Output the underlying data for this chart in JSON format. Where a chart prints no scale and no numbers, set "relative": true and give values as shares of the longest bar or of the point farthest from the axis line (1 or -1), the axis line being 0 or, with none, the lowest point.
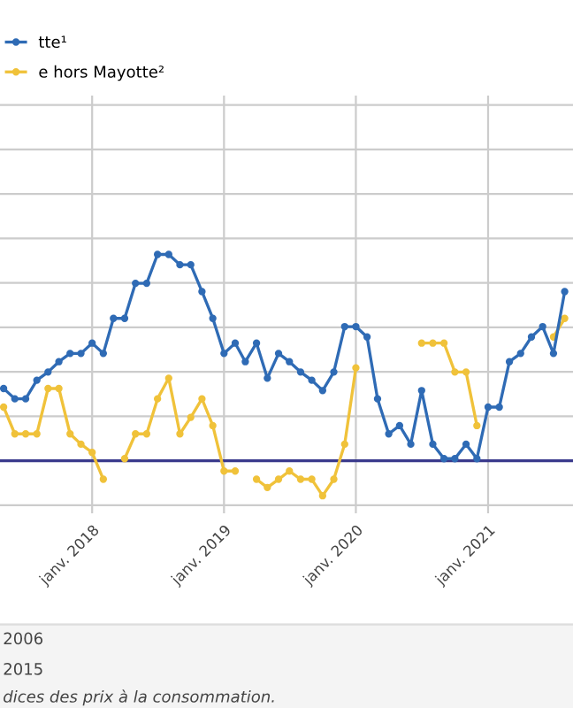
{
  "chart_data": {
    "type": "line",
    "relative": true,
    "grid": true,
    "marker": "circle",
    "line_style": "solid",
    "legend": "top left",
    "x": [
      "2017-05",
      "2017-06",
      "2017-07",
      "2017-08",
      "2017-09",
      "2017-10",
      "2017-11",
      "2017-12",
      "2018-01",
      "2018-02",
      "2018-03",
      "2018-04",
      "2018-05",
      "2018-06",
      "2018-07",
      "2018-08",
      "2018-09",
      "2018-10",
      "2018-11",
      "2018-12",
      "2019-01",
      "2019-02",
      "2019-03",
      "2019-04",
      "2019-05",
      "2019-06",
      "2019-07",
      "2019-08",
      "2019-09",
      "2019-10",
      "2019-11",
      "2019-12",
      "2020-01",
      "2020-02",
      "2020-03",
      "2020-04",
      "2020-05",
      "2020-06",
      "2020-07",
      "2020-08",
      "2020-09",
      "2020-10",
      "2020-11",
      "2020-12",
      "2021-01",
      "2021-02",
      "2021-03",
      "2021-04",
      "2021-05",
      "2021-06",
      "2021-07",
      "2021-08"
    ],
    "xlim": [
      "2017-04-21",
      "2021-08-24"
    ],
    "xticks": [
      {
        "value": "2018-01-01",
        "label": "janv. 2018"
      },
      {
        "value": "2019-01-01",
        "label": "janv. 2019"
      },
      {
        "value": "2020-01-01",
        "label": "janv. 2020"
      },
      {
        "value": "2021-01-01",
        "label": "janv. 2021"
      }
    ],
    "series": [
      {
        "name": "tte¹",
        "color": "#2f6bb5",
        "values": [
          0.35,
          0.3,
          0.3,
          0.39,
          0.43,
          0.48,
          0.52,
          0.52,
          0.57,
          0.52,
          0.69,
          0.69,
          0.86,
          0.86,
          1,
          1,
          0.95,
          0.95,
          0.82,
          0.69,
          0.52,
          0.57,
          0.48,
          0.57,
          0.4,
          0.52,
          0.48,
          0.43,
          0.39,
          0.34,
          0.43,
          0.65,
          0.65,
          0.6,
          0.3,
          0.13,
          0.17,
          0.08,
          0.34,
          0.08,
          0.01,
          0.01,
          0.08,
          0.01,
          0.26,
          0.26,
          0.48,
          0.52,
          0.6,
          0.65,
          0.52,
          0.82
        ]
      },
      {
        "name": "e hors Mayotte²",
        "color": "#f0c23a",
        "values": [
          0.26,
          0.13,
          0.13,
          0.13,
          0.35,
          0.35,
          0.13,
          0.08,
          0.04,
          -0.09,
          null,
          0.01,
          0.13,
          0.13,
          0.3,
          0.4,
          0.13,
          0.21,
          0.3,
          0.17,
          -0.05,
          -0.05,
          null,
          -0.09,
          -0.13,
          -0.09,
          -0.05,
          -0.09,
          -0.09,
          -0.17,
          -0.09,
          0.08,
          0.45,
          null,
          null,
          null,
          null,
          null,
          0.57,
          0.57,
          0.57,
          0.43,
          0.43,
          0.17,
          null,
          null,
          null,
          null,
          null,
          null,
          0.6,
          0.69
        ]
      }
    ],
    "ref_lines": [
      {
        "axis": "y",
        "value": 0,
        "color": "#3a3a8c"
      }
    ],
    "annotations": [
      "2006",
      "2015",
      "dices des prix à la consommation."
    ]
  }
}
